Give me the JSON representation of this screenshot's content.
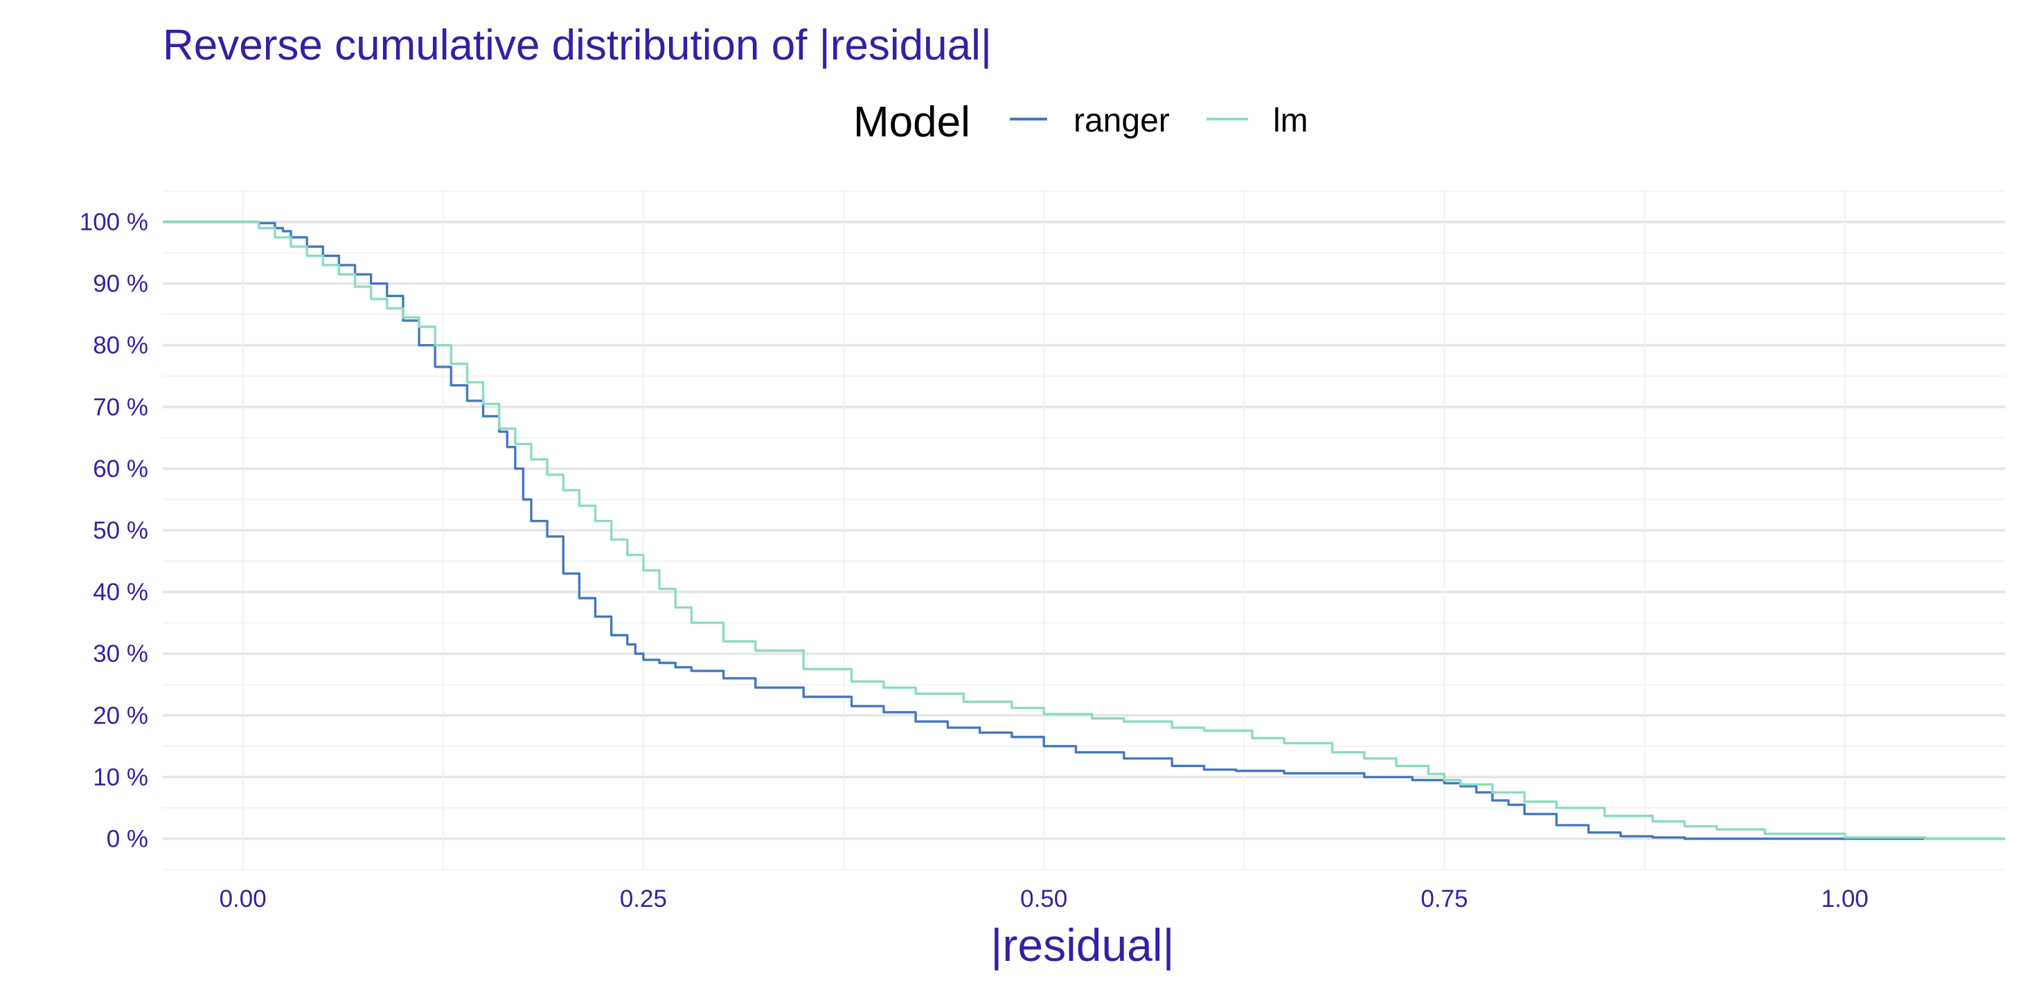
{
  "chart_data": {
    "type": "line",
    "title": "Reverse cumulative distribution of |residual|",
    "xlabel": "|residual|",
    "ylabel": "",
    "xlim": [
      -0.05,
      1.1
    ],
    "ylim": [
      -0.05,
      1.05
    ],
    "grid": true,
    "legend": {
      "title": "Model",
      "position": "top"
    },
    "x_ticks": [
      {
        "value": 0.0,
        "label": "0.00"
      },
      {
        "value": 0.25,
        "label": "0.25"
      },
      {
        "value": 0.5,
        "label": "0.50"
      },
      {
        "value": 0.75,
        "label": "0.75"
      },
      {
        "value": 1.0,
        "label": "1.00"
      }
    ],
    "y_ticks": [
      {
        "value": 0.0,
        "label": "0 %"
      },
      {
        "value": 0.1,
        "label": "10 %"
      },
      {
        "value": 0.2,
        "label": "20 %"
      },
      {
        "value": 0.3,
        "label": "30 %"
      },
      {
        "value": 0.4,
        "label": "40 %"
      },
      {
        "value": 0.5,
        "label": "50 %"
      },
      {
        "value": 0.6,
        "label": "60 %"
      },
      {
        "value": 0.7,
        "label": "70 %"
      },
      {
        "value": 0.8,
        "label": "80 %"
      },
      {
        "value": 0.9,
        "label": "90 %"
      },
      {
        "value": 1.0,
        "label": "100 %"
      }
    ],
    "series": [
      {
        "name": "ranger",
        "color": "#4378bf",
        "x": [
          -0.05,
          0.0,
          0.01,
          0.02,
          0.025,
          0.03,
          0.04,
          0.05,
          0.06,
          0.07,
          0.08,
          0.09,
          0.1,
          0.11,
          0.12,
          0.13,
          0.14,
          0.15,
          0.16,
          0.165,
          0.17,
          0.175,
          0.18,
          0.19,
          0.2,
          0.21,
          0.22,
          0.23,
          0.24,
          0.245,
          0.25,
          0.26,
          0.27,
          0.28,
          0.3,
          0.32,
          0.35,
          0.38,
          0.4,
          0.42,
          0.44,
          0.46,
          0.48,
          0.5,
          0.52,
          0.55,
          0.58,
          0.6,
          0.62,
          0.65,
          0.7,
          0.73,
          0.75,
          0.76,
          0.77,
          0.78,
          0.79,
          0.8,
          0.82,
          0.84,
          0.86,
          0.88,
          0.9,
          0.95,
          1.0,
          1.1
        ],
        "y": [
          1.0,
          1.0,
          0.998,
          0.99,
          0.985,
          0.975,
          0.96,
          0.945,
          0.93,
          0.915,
          0.9,
          0.88,
          0.84,
          0.8,
          0.765,
          0.735,
          0.71,
          0.685,
          0.66,
          0.635,
          0.6,
          0.55,
          0.515,
          0.49,
          0.43,
          0.39,
          0.36,
          0.33,
          0.315,
          0.3,
          0.29,
          0.285,
          0.278,
          0.272,
          0.26,
          0.245,
          0.23,
          0.215,
          0.205,
          0.19,
          0.18,
          0.172,
          0.165,
          0.15,
          0.14,
          0.13,
          0.118,
          0.112,
          0.11,
          0.106,
          0.1,
          0.095,
          0.09,
          0.085,
          0.075,
          0.062,
          0.055,
          0.04,
          0.022,
          0.01,
          0.004,
          0.002,
          0.0,
          0.0,
          0.0,
          0.0
        ]
      },
      {
        "name": "lm",
        "color": "#8bdcbe",
        "x": [
          -0.05,
          0.0,
          0.01,
          0.02,
          0.03,
          0.04,
          0.05,
          0.06,
          0.07,
          0.08,
          0.09,
          0.1,
          0.11,
          0.12,
          0.13,
          0.14,
          0.15,
          0.16,
          0.17,
          0.18,
          0.19,
          0.2,
          0.21,
          0.22,
          0.23,
          0.24,
          0.25,
          0.26,
          0.27,
          0.28,
          0.3,
          0.32,
          0.35,
          0.38,
          0.4,
          0.42,
          0.45,
          0.48,
          0.5,
          0.53,
          0.55,
          0.58,
          0.6,
          0.63,
          0.65,
          0.68,
          0.7,
          0.72,
          0.74,
          0.75,
          0.76,
          0.78,
          0.8,
          0.82,
          0.85,
          0.88,
          0.9,
          0.92,
          0.95,
          1.0,
          1.05,
          1.1
        ],
        "y": [
          1.0,
          1.0,
          0.99,
          0.975,
          0.96,
          0.945,
          0.93,
          0.915,
          0.895,
          0.875,
          0.86,
          0.845,
          0.83,
          0.8,
          0.77,
          0.74,
          0.705,
          0.665,
          0.64,
          0.615,
          0.59,
          0.565,
          0.54,
          0.515,
          0.485,
          0.46,
          0.435,
          0.405,
          0.375,
          0.35,
          0.32,
          0.305,
          0.275,
          0.255,
          0.245,
          0.235,
          0.222,
          0.212,
          0.202,
          0.195,
          0.19,
          0.18,
          0.175,
          0.163,
          0.155,
          0.14,
          0.13,
          0.118,
          0.105,
          0.095,
          0.088,
          0.075,
          0.06,
          0.05,
          0.037,
          0.028,
          0.02,
          0.015,
          0.008,
          0.002,
          0.0,
          0.0
        ]
      }
    ]
  }
}
